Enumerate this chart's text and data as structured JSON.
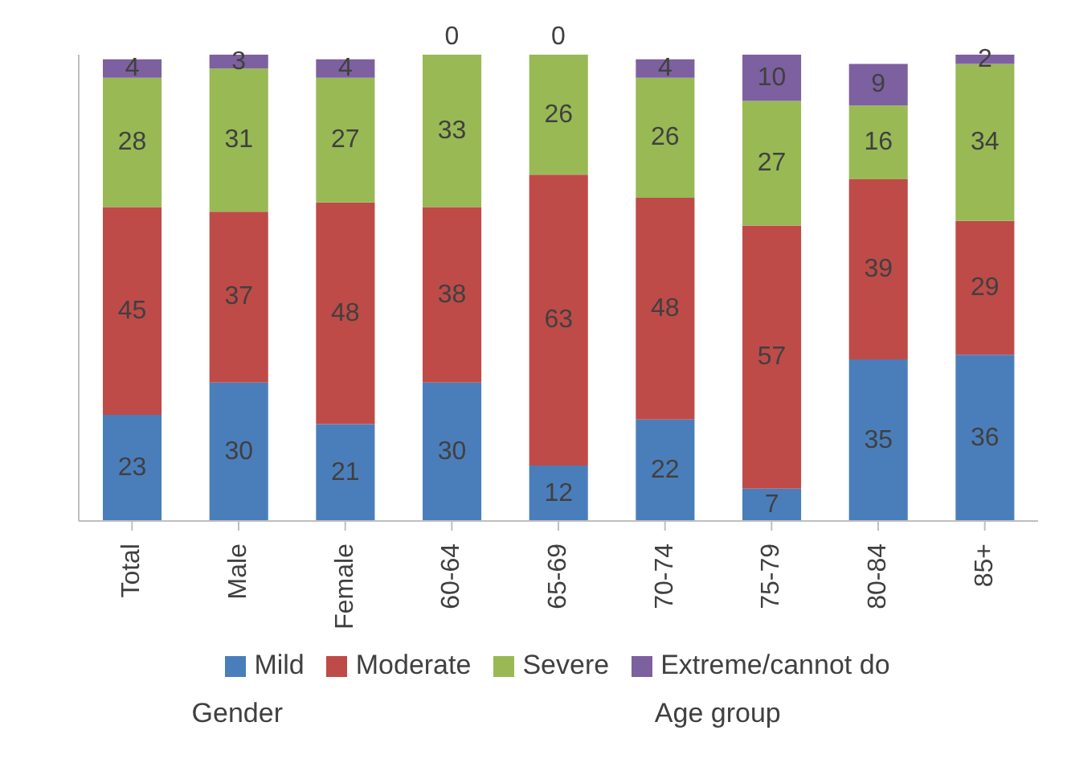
{
  "chart_data": {
    "type": "bar",
    "stacked": true,
    "categories": [
      "Total",
      "Male",
      "Female",
      "60-64",
      "65-69",
      "70-74",
      "75-79",
      "80-84",
      "85+"
    ],
    "series": [
      {
        "name": "Mild",
        "color": "#4a7ebb",
        "values": [
          23,
          30,
          21,
          30,
          12,
          22,
          7,
          35,
          36
        ]
      },
      {
        "name": "Moderate",
        "color": "#be4b48",
        "values": [
          45,
          37,
          48,
          38,
          63,
          48,
          57,
          39,
          29
        ]
      },
      {
        "name": "Severe",
        "color": "#98b954",
        "values": [
          28,
          31,
          27,
          33,
          26,
          26,
          27,
          16,
          34
        ]
      },
      {
        "name": "Extreme/cannot do",
        "color": "#7d60a0",
        "values": [
          4,
          3,
          4,
          0,
          0,
          4,
          10,
          9,
          2
        ]
      }
    ],
    "ylim": [
      0,
      101
    ],
    "tick_labels": "x",
    "data_labels": true,
    "legend": "bottom",
    "annotations": [
      "Gender",
      "Age group"
    ]
  }
}
